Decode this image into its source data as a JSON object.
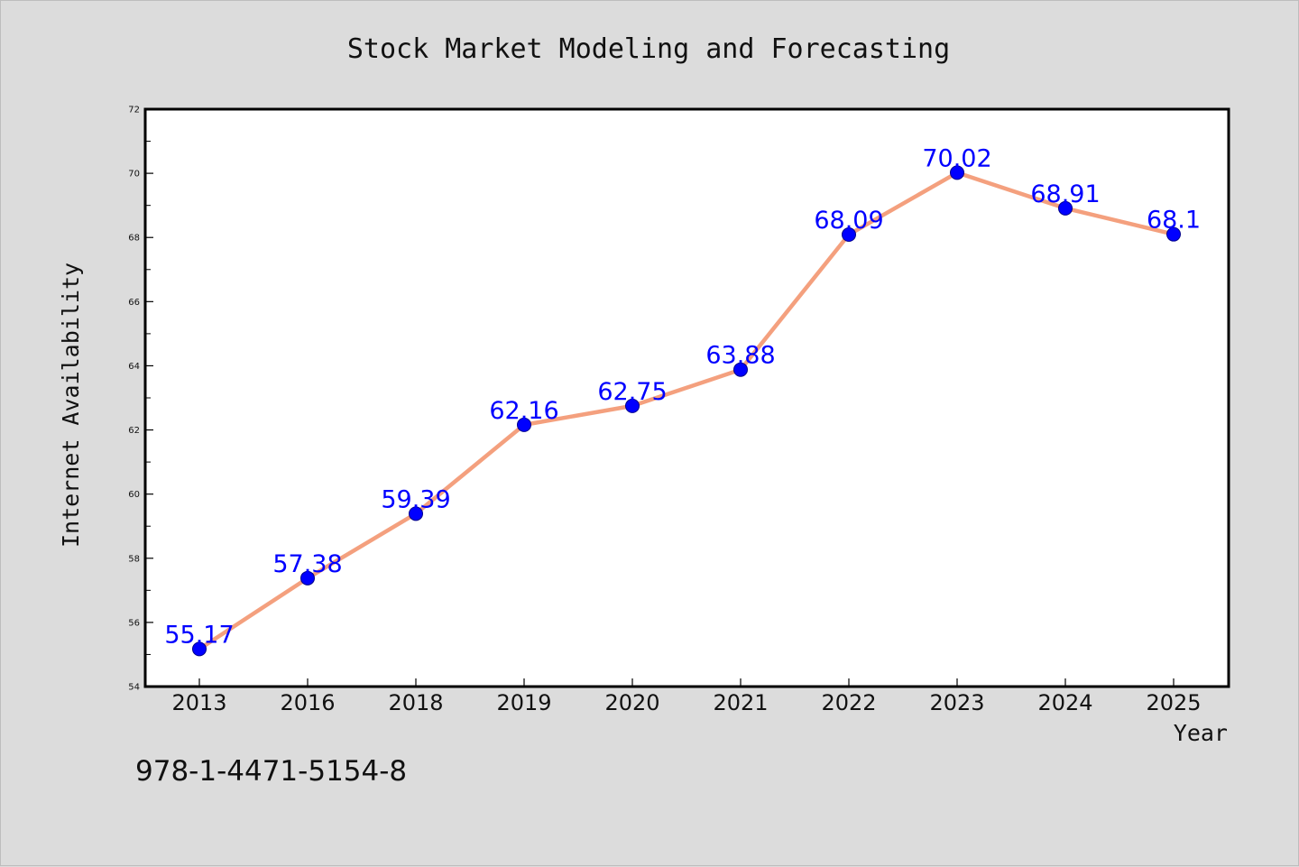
{
  "chart_data": {
    "type": "line",
    "title": "Stock Market Modeling and Forecasting",
    "xlabel": "Year",
    "ylabel": "Internet Availability",
    "categories": [
      "2013",
      "2016",
      "2018",
      "2019",
      "2020",
      "2021",
      "2022",
      "2023",
      "2024",
      "2025"
    ],
    "series": [
      {
        "values": [
          55.17,
          57.38,
          59.39,
          62.16,
          62.75,
          63.88,
          68.09,
          70.02,
          68.91,
          68.1
        ]
      }
    ],
    "data_labels": [
      "55.17",
      "57.38",
      "59.39",
      "62.16",
      "62.75",
      "63.88",
      "68.09",
      "70.02",
      "68.91",
      "68.1"
    ],
    "ylim": [
      54,
      72
    ],
    "yticks": [
      "54",
      "56",
      "58",
      "60",
      "62",
      "64",
      "66",
      "68",
      "70",
      "72"
    ],
    "grid": false,
    "legend": "none",
    "colors": {
      "line": "#f4a07e",
      "marker": "#0000ff",
      "data_label": "#0000ff",
      "plot_background": "#ffffff",
      "figure_background": "#dcdcdc"
    }
  },
  "annotation": "978-1-4471-5154-8"
}
